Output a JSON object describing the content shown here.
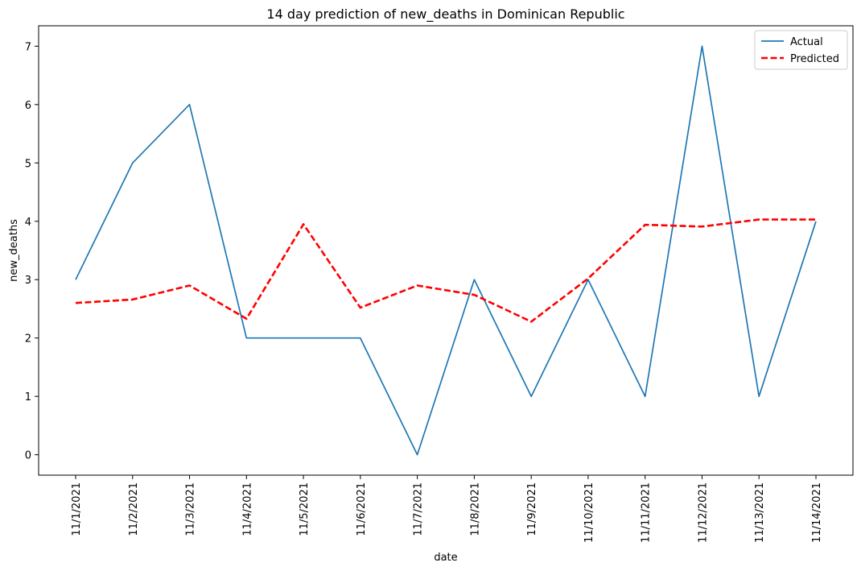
{
  "chart_data": {
    "type": "line",
    "title": "14 day prediction of new_deaths in Dominican Republic",
    "xlabel": "date",
    "ylabel": "new_deaths",
    "categories": [
      "11/1/2021",
      "11/2/2021",
      "11/3/2021",
      "11/4/2021",
      "11/5/2021",
      "11/6/2021",
      "11/7/2021",
      "11/8/2021",
      "11/9/2021",
      "11/10/2021",
      "11/11/2021",
      "11/12/2021",
      "11/13/2021",
      "11/14/2021"
    ],
    "yticks": [
      0,
      1,
      2,
      3,
      4,
      5,
      6,
      7
    ],
    "ylim": [
      -0.35,
      7.35
    ],
    "grid": false,
    "legend_position": "top-right",
    "series": [
      {
        "name": "Actual",
        "color": "#1f77b4",
        "style": "solid",
        "values": [
          3,
          5,
          6,
          2,
          2,
          2,
          0,
          3,
          1,
          3,
          1,
          7,
          1,
          4
        ]
      },
      {
        "name": "Predicted",
        "color": "#ff0000",
        "style": "dashed",
        "values": [
          2.6,
          2.66,
          2.9,
          2.33,
          3.95,
          2.52,
          2.9,
          2.74,
          2.28,
          3.02,
          3.94,
          3.91,
          4.03,
          4.03
        ]
      }
    ]
  }
}
